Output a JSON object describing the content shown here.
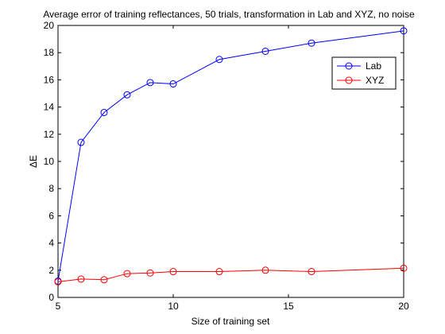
{
  "chart_data": {
    "type": "line",
    "title": "Average error of training reflectances, 50 trials, transformation in Lab and XYZ, no noise",
    "xlabel": "Size of training set",
    "ylabel": "ΔE",
    "xlim": [
      5,
      20
    ],
    "ylim": [
      0,
      20
    ],
    "xticks": [
      5,
      10,
      15,
      20
    ],
    "yticks": [
      0,
      2,
      4,
      6,
      8,
      10,
      12,
      14,
      16,
      18,
      20
    ],
    "grid": false,
    "legend_position": "top-right",
    "series": [
      {
        "name": "Lab",
        "color": "#0000ff",
        "marker": "circle",
        "x": [
          5,
          6,
          7,
          8,
          9,
          10,
          12,
          14,
          16,
          20
        ],
        "y": [
          1.2,
          11.4,
          13.6,
          14.9,
          15.8,
          15.7,
          17.5,
          18.1,
          18.7,
          19.6
        ]
      },
      {
        "name": "XYZ",
        "color": "#ff0000",
        "marker": "circle",
        "x": [
          5,
          6,
          7,
          8,
          9,
          10,
          12,
          14,
          16,
          20
        ],
        "y": [
          1.15,
          1.35,
          1.3,
          1.75,
          1.8,
          1.9,
          1.9,
          2.0,
          1.9,
          2.15
        ]
      }
    ]
  }
}
